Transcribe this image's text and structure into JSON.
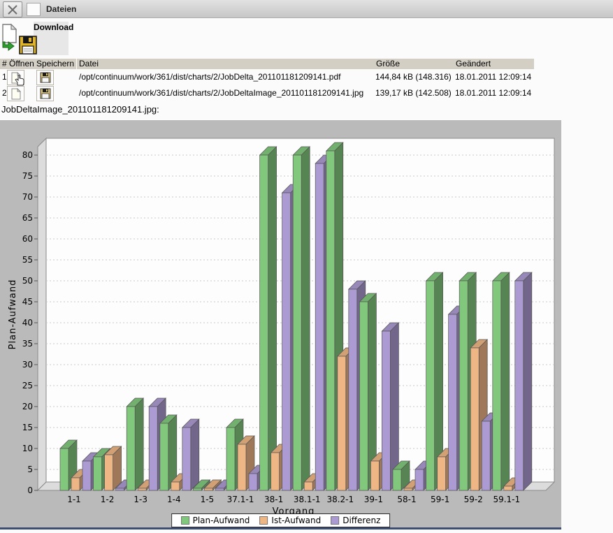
{
  "window": {
    "title": "Dateien"
  },
  "toolbar": {
    "download_label": "Download"
  },
  "files_table": {
    "headers": {
      "open": "# Öffnen",
      "save": "Speichern",
      "file": "Datei",
      "size": "Größe",
      "modified": "Geändert"
    },
    "rows": [
      {
        "index": "1",
        "file": "/opt/continuum/work/361/dist/charts/2/JobDelta_201101181209141.pdf",
        "size": "144,84 kB (148.316)",
        "modified": "18.01.2011 12:09:14"
      },
      {
        "index": "2",
        "file": "/opt/continuum/work/361/dist/charts/2/JobDeltaImage_201101181209141.jpg",
        "size": "139,17 kB (142.508)",
        "modified": "18.01.2011 12:09:14"
      }
    ]
  },
  "image_caption": "JobDeltaImage_201101181209141.jpg:",
  "chart_data": {
    "type": "bar",
    "projection": "3d",
    "title": "",
    "xlabel": "Vorgang",
    "ylabel": "Plan-Aufwand",
    "ylim": [
      0,
      82
    ],
    "ytick_step": 5,
    "grid": "horizontal-dashed",
    "legend_position": "bottom-center",
    "background": "#bababa",
    "plot_background": "#fdfdfd",
    "wall_color": "#dcdcdc",
    "categories": [
      "1-1",
      "1-2",
      "1-3",
      "1-4",
      "1-5",
      "37.1-1",
      "38-1",
      "38.1-1",
      "38.2-1",
      "39-1",
      "58-1",
      "59-1",
      "59-2",
      "59.1-1"
    ],
    "series": [
      {
        "name": "Plan-Aufwand",
        "color": "#82c87c",
        "values": [
          10,
          8,
          20,
          16,
          0.5,
          15,
          80,
          80,
          81,
          45,
          5,
          50,
          50,
          50
        ]
      },
      {
        "name": "Ist-Aufwand",
        "color": "#efb685",
        "values": [
          3,
          8.5,
          0.5,
          2,
          0.5,
          11,
          9,
          2,
          32,
          7,
          0.5,
          8,
          34,
          1
        ]
      },
      {
        "name": "Differenz",
        "color": "#ac9ad2",
        "values": [
          7,
          0.5,
          20,
          15,
          0.5,
          4,
          71,
          78,
          48,
          38,
          5,
          42,
          16.5,
          50
        ]
      }
    ]
  }
}
